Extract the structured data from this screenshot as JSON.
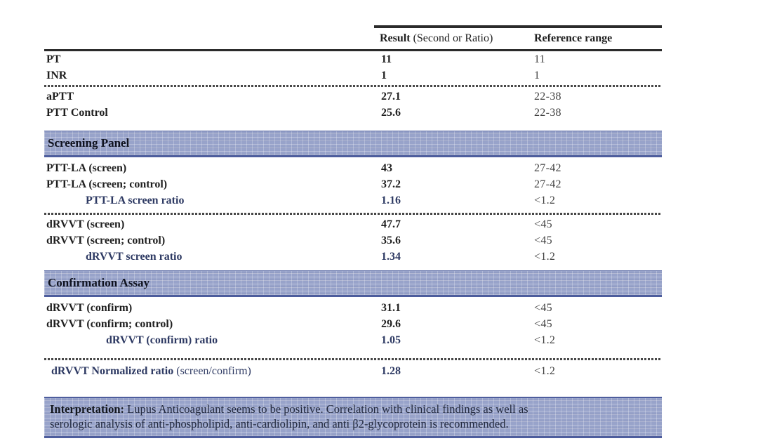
{
  "header": {
    "result_bold": "Result",
    "result_rest": " (Second or Ratio)",
    "reference": "Reference range"
  },
  "rows": [
    {
      "label": "PT",
      "result": "11",
      "reference": "11"
    },
    {
      "label": "INR",
      "result": "1",
      "reference": "1"
    },
    {
      "label": "aPTT",
      "result": "27.1",
      "reference": "22-38"
    },
    {
      "label": "PTT Control",
      "result": "25.6",
      "reference": "22-38"
    },
    {
      "label": "PTT-LA (screen)",
      "result": "43",
      "reference": "27-42"
    },
    {
      "label": "PTT-LA (screen; control)",
      "result": "37.2",
      "reference": "27-42"
    },
    {
      "label": "PTT-LA screen ratio",
      "result": "1.16",
      "reference": "<1.2"
    },
    {
      "label": "dRVVT (screen)",
      "result": "47.7",
      "reference": "<45"
    },
    {
      "label": "dRVVT (screen; control)",
      "result": "35.6",
      "reference": "<45"
    },
    {
      "label": "dRVVT screen ratio",
      "result": "1.34",
      "reference": "<1.2"
    },
    {
      "label": "dRVVT (confirm)",
      "result": "31.1",
      "reference": "<45"
    },
    {
      "label": "dRVVT (confirm; control)",
      "result": "29.6",
      "reference": "<45"
    },
    {
      "label": "dRVVT (confirm) ratio",
      "result": "1.05",
      "reference": "<1.2"
    },
    {
      "label": "dRVVT Normalized ratio",
      "label_rest": " (screen/confirm)",
      "result": "1.28",
      "reference": "<1.2"
    }
  ],
  "sections": {
    "screening": "Screening Panel",
    "confirmation": "Confirmation Assay"
  },
  "interpretation": {
    "title": "Interpretation:",
    "line1": " Lupus Anticoagulant seems to be positive. Correlation with clinical findings as well as",
    "line2": "serologic analysis of anti-phospholipid, anti-cardiolipin, and anti β2-glycoprotein is recommended."
  },
  "colors": {
    "section_bar_bg": "#98a3ca",
    "section_bar_border": "#4d5d9d",
    "ratio_text": "#2e3a63",
    "body_text": "#1f1f1f",
    "reference_text": "#424242",
    "rule": "#2b2b2b"
  }
}
